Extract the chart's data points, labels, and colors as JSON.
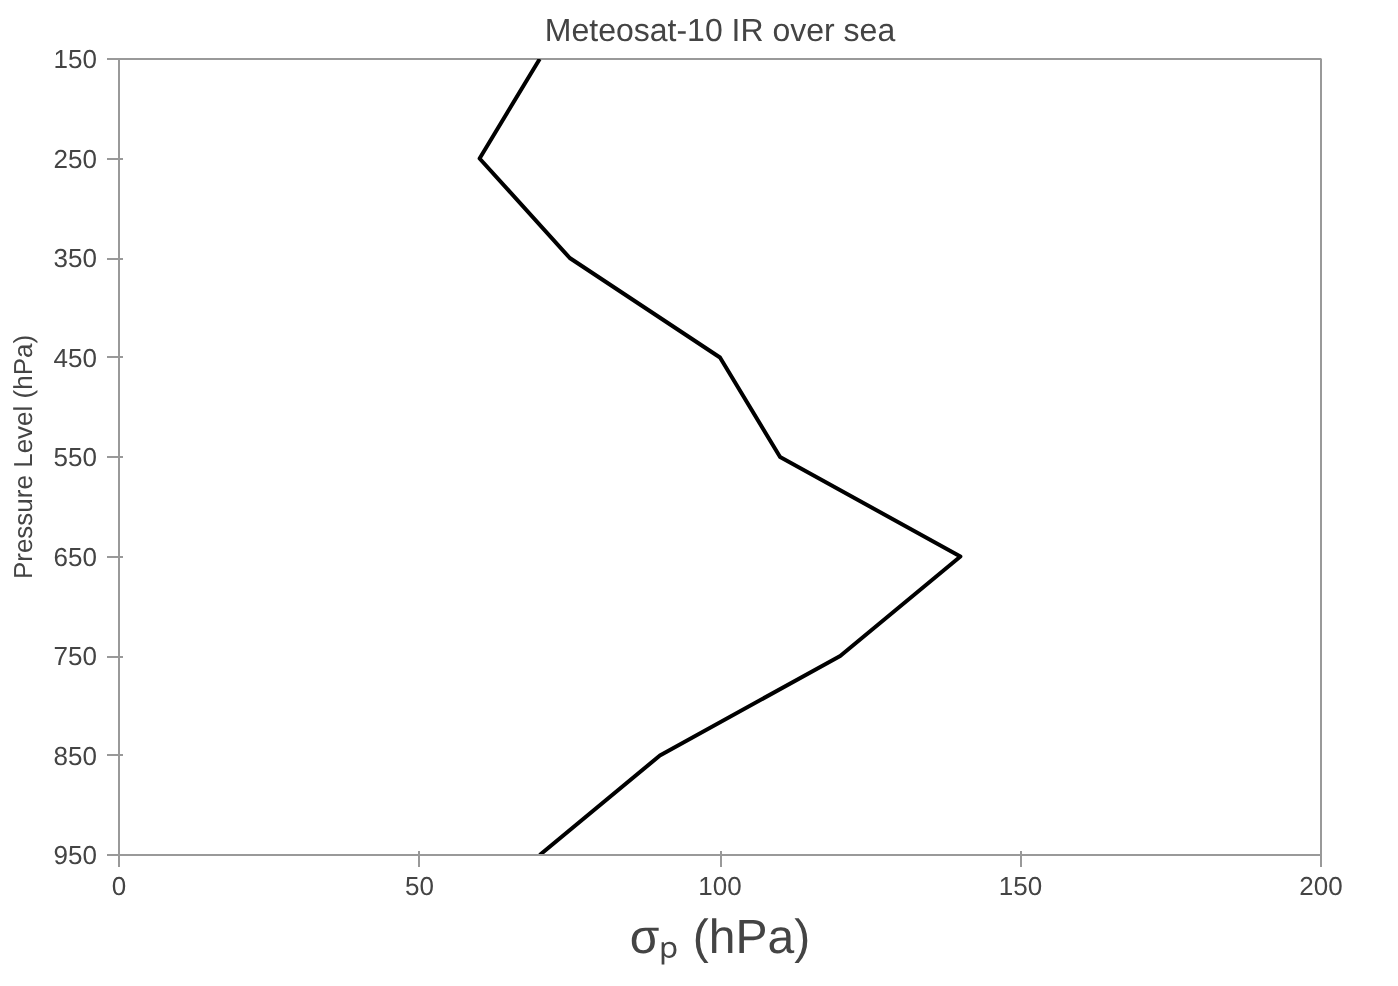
{
  "chart_data": {
    "type": "line",
    "title": "Meteosat-10 IR over sea",
    "xlabel": "σₚ (hPa)",
    "ylabel": "Pressure Level (hPa)",
    "x": [
      70,
      60,
      75,
      100,
      110,
      140,
      120,
      90,
      70
    ],
    "series": [
      {
        "color": "#000000",
        "values": [
          150,
          250,
          350,
          450,
          550,
          650,
          750,
          850,
          950
        ]
      }
    ],
    "xlim": [
      0,
      200
    ],
    "xticks": [
      0,
      50,
      100,
      150,
      200
    ],
    "ylim": [
      950,
      150
    ],
    "yticks": [
      150,
      250,
      350,
      450,
      550,
      650,
      750,
      850,
      950
    ],
    "grid": false,
    "marker": "none",
    "line_style": "solid"
  }
}
